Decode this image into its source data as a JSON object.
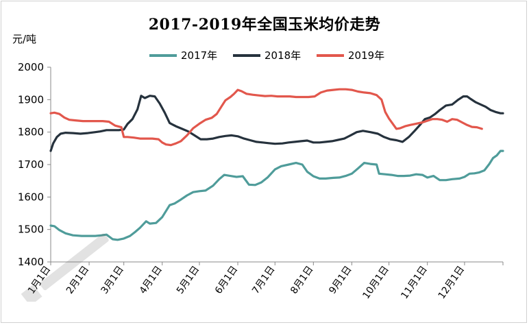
{
  "chart_data": {
    "type": "line",
    "title": "2017-2019年全国玉米均价走势",
    "ylabel": "元/吨",
    "xlabel": "",
    "ylim": [
      1400,
      2000
    ],
    "yticks": [
      1400,
      1500,
      1600,
      1700,
      1800,
      1900,
      2000
    ],
    "xlim": [
      0,
      365
    ],
    "x_tick_labels": [
      "1月1日",
      "2月1日",
      "3月1日",
      "4月1日",
      "5月1日",
      "6月1日",
      "7月1日",
      "8月1日",
      "9月1日",
      "10月1日",
      "11月1日",
      "12月1日"
    ],
    "x_tick_days": [
      0,
      31,
      59,
      90,
      120,
      151,
      181,
      212,
      243,
      273,
      304,
      334
    ],
    "legend_position": "top",
    "grid": false,
    "series": [
      {
        "name": "2017年",
        "color": "#4f9c9a",
        "x": [
          0,
          3,
          7,
          12,
          18,
          25,
          31,
          36,
          41,
          45,
          50,
          54,
          59,
          64,
          68,
          72,
          77,
          80,
          85,
          90,
          96,
          100,
          105,
          110,
          115,
          120,
          125,
          131,
          136,
          140,
          145,
          150,
          155,
          160,
          165,
          170,
          175,
          181,
          186,
          192,
          198,
          203,
          207,
          212,
          217,
          222,
          228,
          233,
          238,
          243,
          248,
          253,
          258,
          263,
          265,
          270,
          275,
          280,
          285,
          290,
          295,
          300,
          304,
          309,
          314,
          319,
          324,
          330,
          334,
          338,
          342,
          346,
          350,
          354,
          357,
          360,
          363,
          365
        ],
        "y": [
          1512,
          1510,
          1498,
          1488,
          1482,
          1480,
          1480,
          1480,
          1482,
          1484,
          1470,
          1468,
          1472,
          1480,
          1492,
          1505,
          1525,
          1518,
          1520,
          1538,
          1575,
          1580,
          1592,
          1605,
          1615,
          1618,
          1620,
          1635,
          1655,
          1668,
          1665,
          1662,
          1664,
          1638,
          1637,
          1645,
          1660,
          1685,
          1695,
          1700,
          1705,
          1700,
          1678,
          1664,
          1657,
          1657,
          1659,
          1660,
          1665,
          1672,
          1688,
          1705,
          1702,
          1700,
          1672,
          1670,
          1668,
          1665,
          1665,
          1666,
          1670,
          1668,
          1660,
          1665,
          1652,
          1652,
          1655,
          1657,
          1662,
          1672,
          1673,
          1676,
          1682,
          1702,
          1720,
          1728,
          1742,
          1742
        ]
      },
      {
        "name": "2018年",
        "color": "#26323d",
        "x": [
          0,
          2,
          5,
          8,
          12,
          18,
          24,
          30,
          36,
          40,
          45,
          50,
          55,
          59,
          62,
          66,
          70,
          73,
          76,
          80,
          84,
          88,
          92,
          96,
          101,
          106,
          111,
          116,
          121,
          126,
          131,
          136,
          141,
          146,
          151,
          156,
          161,
          166,
          171,
          176,
          181,
          187,
          192,
          197,
          202,
          207,
          212,
          217,
          222,
          227,
          232,
          237,
          242,
          247,
          252,
          258,
          264,
          269,
          274,
          279,
          284,
          289,
          294,
          298,
          302,
          306,
          310,
          314,
          319,
          324,
          329,
          333,
          336,
          339,
          343,
          347,
          351,
          355,
          359,
          363,
          365
        ],
        "y": [
          1742,
          1765,
          1785,
          1795,
          1798,
          1797,
          1795,
          1797,
          1800,
          1802,
          1806,
          1806,
          1806,
          1808,
          1825,
          1840,
          1870,
          1912,
          1905,
          1912,
          1910,
          1888,
          1860,
          1828,
          1818,
          1810,
          1802,
          1790,
          1778,
          1778,
          1780,
          1785,
          1788,
          1790,
          1787,
          1780,
          1775,
          1770,
          1768,
          1766,
          1764,
          1765,
          1768,
          1770,
          1772,
          1774,
          1768,
          1768,
          1770,
          1772,
          1776,
          1780,
          1790,
          1800,
          1804,
          1800,
          1795,
          1785,
          1778,
          1775,
          1770,
          1785,
          1805,
          1822,
          1840,
          1845,
          1855,
          1868,
          1882,
          1885,
          1900,
          1910,
          1910,
          1902,
          1892,
          1885,
          1878,
          1868,
          1862,
          1858,
          1858
        ]
      },
      {
        "name": "2019年",
        "color": "#e2574c",
        "x": [
          0,
          3,
          7,
          11,
          15,
          20,
          26,
          31,
          37,
          42,
          47,
          52,
          57,
          59,
          62,
          67,
          72,
          77,
          82,
          87,
          90,
          93,
          97,
          101,
          105,
          110,
          115,
          120,
          125,
          130,
          134,
          138,
          141,
          145,
          148,
          151,
          154,
          158,
          163,
          168,
          173,
          178,
          183,
          188,
          193,
          198,
          203,
          208,
          213,
          218,
          223,
          228,
          233,
          238,
          243,
          248,
          253,
          258,
          263,
          267,
          270,
          273,
          276,
          279,
          282,
          286,
          290,
          295,
          300,
          304,
          308,
          312,
          316,
          320,
          324,
          328,
          332,
          336,
          340,
          344,
          348
        ],
        "y": [
          1858,
          1860,
          1856,
          1845,
          1838,
          1836,
          1834,
          1834,
          1834,
          1834,
          1832,
          1820,
          1815,
          1785,
          1785,
          1783,
          1780,
          1780,
          1780,
          1778,
          1768,
          1762,
          1760,
          1765,
          1772,
          1790,
          1812,
          1826,
          1838,
          1844,
          1856,
          1880,
          1898,
          1908,
          1918,
          1930,
          1926,
          1918,
          1915,
          1913,
          1911,
          1912,
          1910,
          1910,
          1910,
          1908,
          1908,
          1908,
          1910,
          1922,
          1928,
          1930,
          1932,
          1932,
          1930,
          1925,
          1922,
          1920,
          1914,
          1900,
          1862,
          1842,
          1826,
          1810,
          1812,
          1818,
          1822,
          1826,
          1830,
          1835,
          1840,
          1840,
          1838,
          1832,
          1840,
          1838,
          1830,
          1822,
          1816,
          1815,
          1810
        ]
      }
    ]
  }
}
